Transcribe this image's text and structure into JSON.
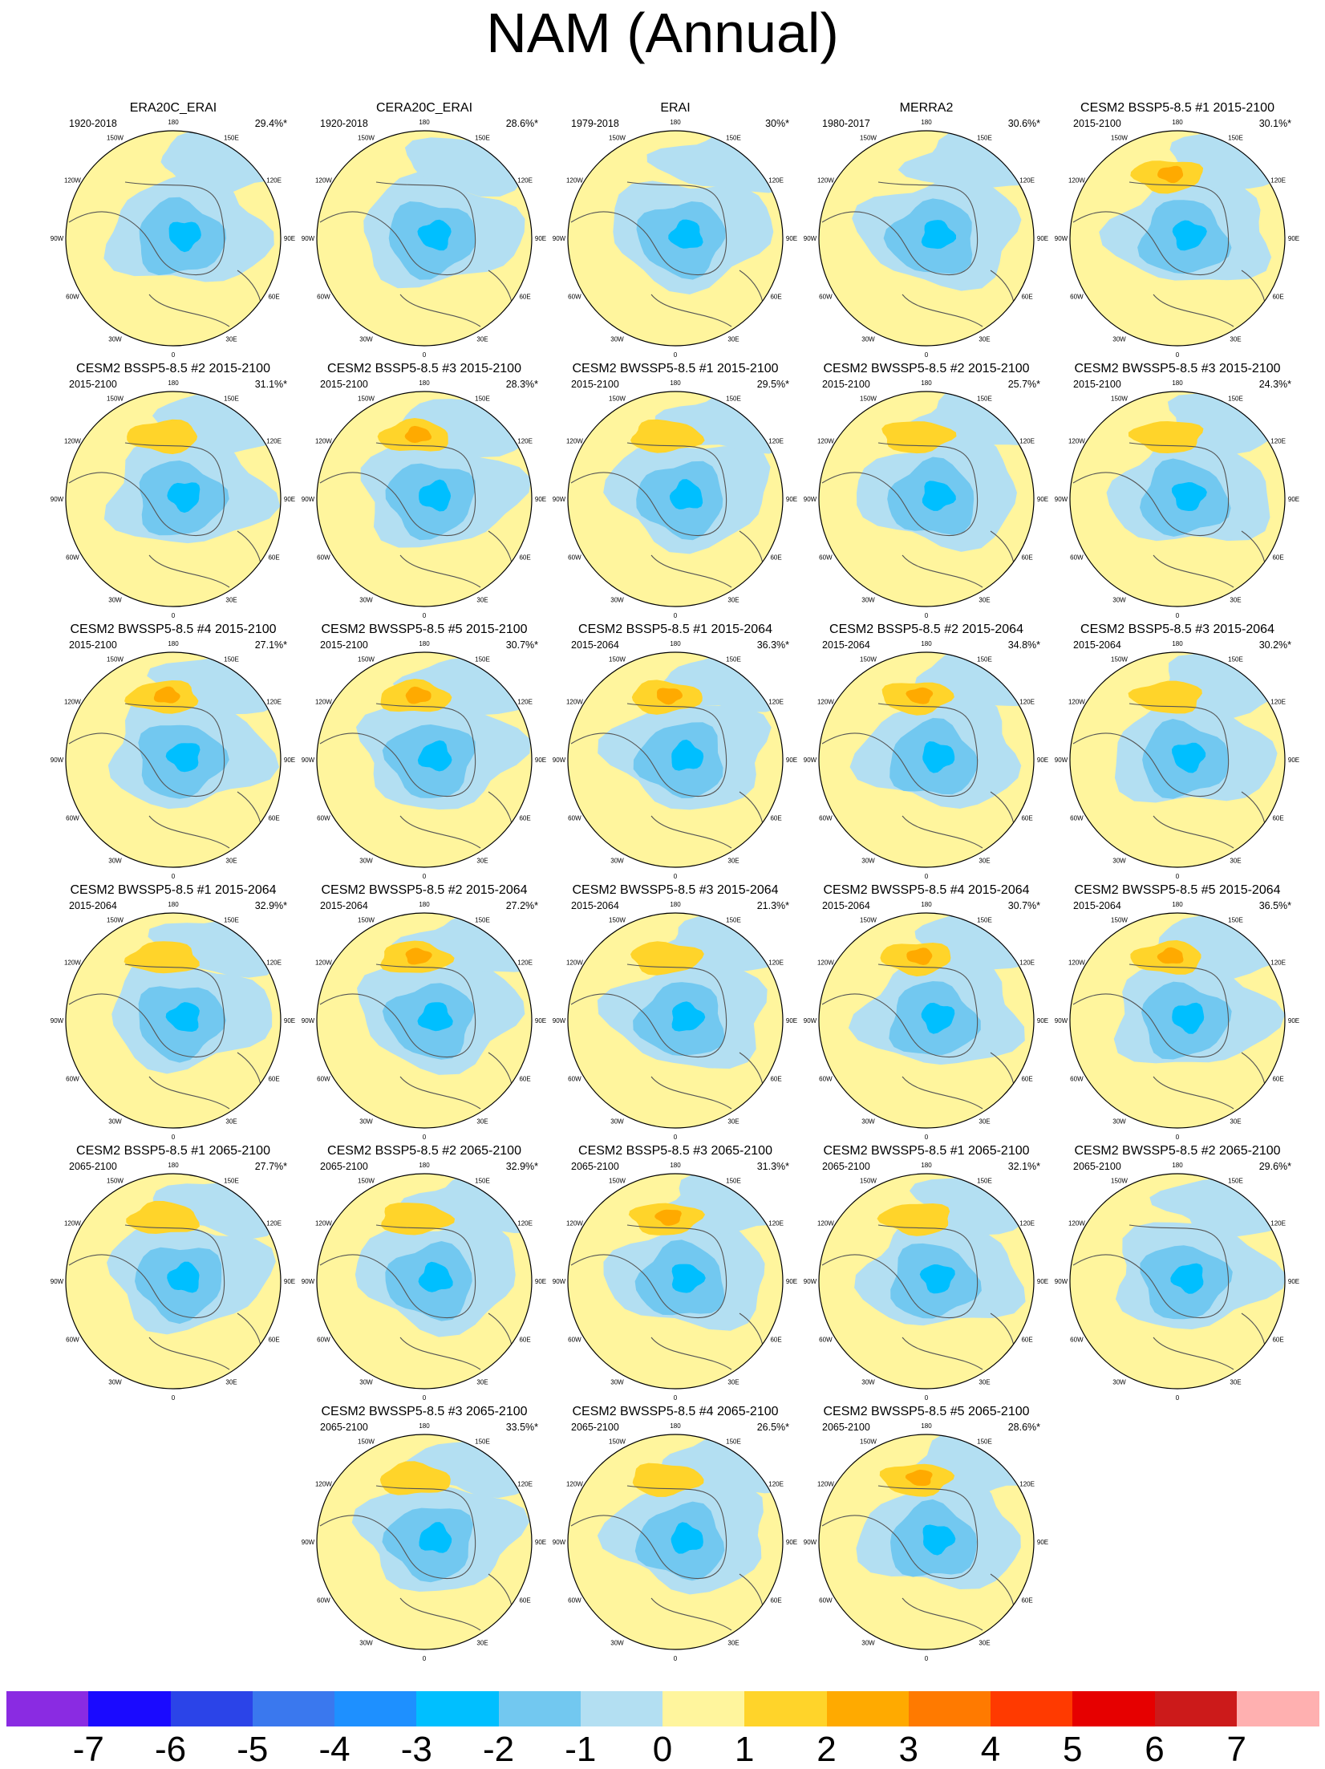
{
  "title": "NAM (Annual)",
  "lon_labels": [
    "180",
    "150E",
    "120E",
    "90E",
    "60E",
    "30E",
    "0",
    "30W",
    "60W",
    "90W",
    "120W",
    "150W"
  ],
  "panels": [
    {
      "title": "ERA20C_ERAI",
      "period": "1920-2018",
      "pct": "29.4%*",
      "pos_center": 0
    },
    {
      "title": "CERA20C_ERAI",
      "period": "1920-2018",
      "pct": "28.6%*",
      "pos_center": 0
    },
    {
      "title": "ERAI",
      "period": "1979-2018",
      "pct": "30%*",
      "pos_center": 0
    },
    {
      "title": "MERRA2",
      "period": "1980-2017",
      "pct": "30.6%*",
      "pos_center": 0
    },
    {
      "title": "CESM2 BSSP5-8.5 #1 2015-2100",
      "period": "2015-2100",
      "pct": "30.1%*",
      "pos_center": 2
    },
    {
      "title": "CESM2 BSSP5-8.5 #2 2015-2100",
      "period": "2015-2100",
      "pct": "31.1%*",
      "pos_center": 1
    },
    {
      "title": "CESM2 BSSP5-8.5 #3 2015-2100",
      "period": "2015-2100",
      "pct": "28.3%*",
      "pos_center": 2
    },
    {
      "title": "CESM2 BWSSP5-8.5 #1 2015-2100",
      "period": "2015-2100",
      "pct": "29.5%*",
      "pos_center": 1
    },
    {
      "title": "CESM2 BWSSP5-8.5 #2 2015-2100",
      "period": "2015-2100",
      "pct": "25.7%*",
      "pos_center": 1
    },
    {
      "title": "CESM2 BWSSP5-8.5 #3 2015-2100",
      "period": "2015-2100",
      "pct": "24.3%*",
      "pos_center": 1
    },
    {
      "title": "CESM2 BWSSP5-8.5 #4 2015-2100",
      "period": "2015-2100",
      "pct": "27.1%*",
      "pos_center": 2
    },
    {
      "title": "CESM2 BWSSP5-8.5 #5 2015-2100",
      "period": "2015-2100",
      "pct": "30.7%*",
      "pos_center": 2
    },
    {
      "title": "CESM2 BSSP5-8.5 #1 2015-2064",
      "period": "2015-2064",
      "pct": "36.3%*",
      "pos_center": 2
    },
    {
      "title": "CESM2 BSSP5-8.5 #2 2015-2064",
      "period": "2015-2064",
      "pct": "34.8%*",
      "pos_center": 2
    },
    {
      "title": "CESM2 BSSP5-8.5 #3 2015-2064",
      "period": "2015-2064",
      "pct": "30.2%*",
      "pos_center": 1
    },
    {
      "title": "CESM2 BWSSP5-8.5 #1 2015-2064",
      "period": "2015-2064",
      "pct": "32.9%*",
      "pos_center": 1
    },
    {
      "title": "CESM2 BWSSP5-8.5 #2 2015-2064",
      "period": "2015-2064",
      "pct": "27.2%*",
      "pos_center": 2
    },
    {
      "title": "CESM2 BWSSP5-8.5 #3 2015-2064",
      "period": "2015-2064",
      "pct": "21.3%*",
      "pos_center": 1
    },
    {
      "title": "CESM2 BWSSP5-8.5 #4 2015-2064",
      "period": "2015-2064",
      "pct": "30.7%*",
      "pos_center": 2
    },
    {
      "title": "CESM2 BWSSP5-8.5 #5 2015-2064",
      "period": "2015-2064",
      "pct": "36.5%*",
      "pos_center": 2
    },
    {
      "title": "CESM2 BSSP5-8.5 #1 2065-2100",
      "period": "2065-2100",
      "pct": "27.7%*",
      "pos_center": 1
    },
    {
      "title": "CESM2 BSSP5-8.5 #2 2065-2100",
      "period": "2065-2100",
      "pct": "32.9%*",
      "pos_center": 1
    },
    {
      "title": "CESM2 BSSP5-8.5 #3 2065-2100",
      "period": "2065-2100",
      "pct": "31.3%*",
      "pos_center": 2
    },
    {
      "title": "CESM2 BWSSP5-8.5 #1 2065-2100",
      "period": "2065-2100",
      "pct": "32.1%*",
      "pos_center": 1
    },
    {
      "title": "CESM2 BWSSP5-8.5 #2 2065-2100",
      "period": "2065-2100",
      "pct": "29.6%*",
      "pos_center": 0
    },
    {
      "title": "CESM2 BWSSP5-8.5 #3 2065-2100",
      "period": "2065-2100",
      "pct": "33.5%*",
      "pos_center": 1
    },
    {
      "title": "CESM2 BWSSP5-8.5 #4 2065-2100",
      "period": "2065-2100",
      "pct": "26.5%*",
      "pos_center": 1
    },
    {
      "title": "CESM2 BWSSP5-8.5 #5 2065-2100",
      "period": "2065-2100",
      "pct": "28.6%*",
      "pos_center": 2
    }
  ],
  "colorbar": {
    "labels": [
      "-7",
      "-6",
      "-5",
      "-4",
      "-3",
      "-2",
      "-1",
      "0",
      "1",
      "2",
      "3",
      "4",
      "5",
      "6",
      "7"
    ],
    "colors": [
      "#8a2be2",
      "#1a0aff",
      "#2b44e8",
      "#3a78ee",
      "#1e90ff",
      "#00bfff",
      "#72c8f0",
      "#b3dff2",
      "#fff59d",
      "#ffd42a",
      "#ffaa00",
      "#ff7a00",
      "#ff3a00",
      "#e60000",
      "#cc1a1a",
      "#ffb0b0"
    ]
  }
}
